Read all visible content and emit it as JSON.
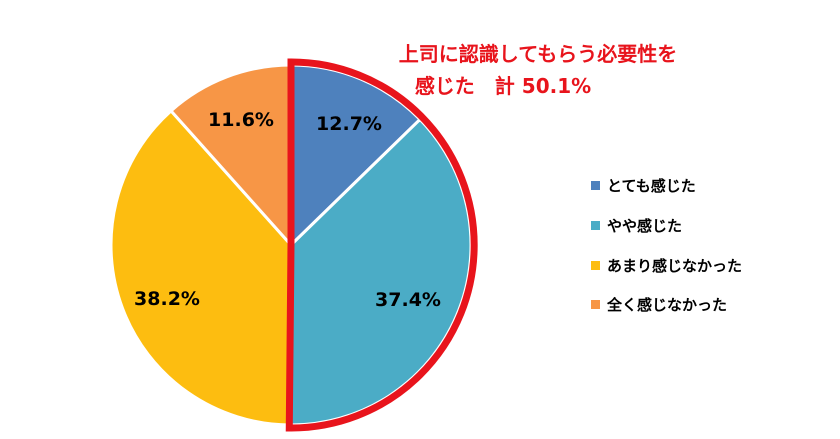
{
  "chart_data": {
    "type": "pie",
    "categories": [
      "とても感じた",
      "やや感じた",
      "あまり感じなかった",
      "全く感じなかった"
    ],
    "values": [
      12.7,
      37.4,
      38.2,
      11.6
    ],
    "value_labels": [
      "12.7%",
      "37.4%",
      "38.2%",
      "11.6%"
    ],
    "colors": [
      "#4e81bd",
      "#4bacc6",
      "#fdbd10",
      "#f79646"
    ],
    "start_angle_deg": 0,
    "direction": "clockwise",
    "legend_position": "right",
    "highlight": {
      "slices": [
        0,
        1
      ],
      "color": "#e8141c",
      "text_lines": [
        "上司に認識してもらう必要性を",
        "感じた　計 50.1%"
      ]
    }
  }
}
